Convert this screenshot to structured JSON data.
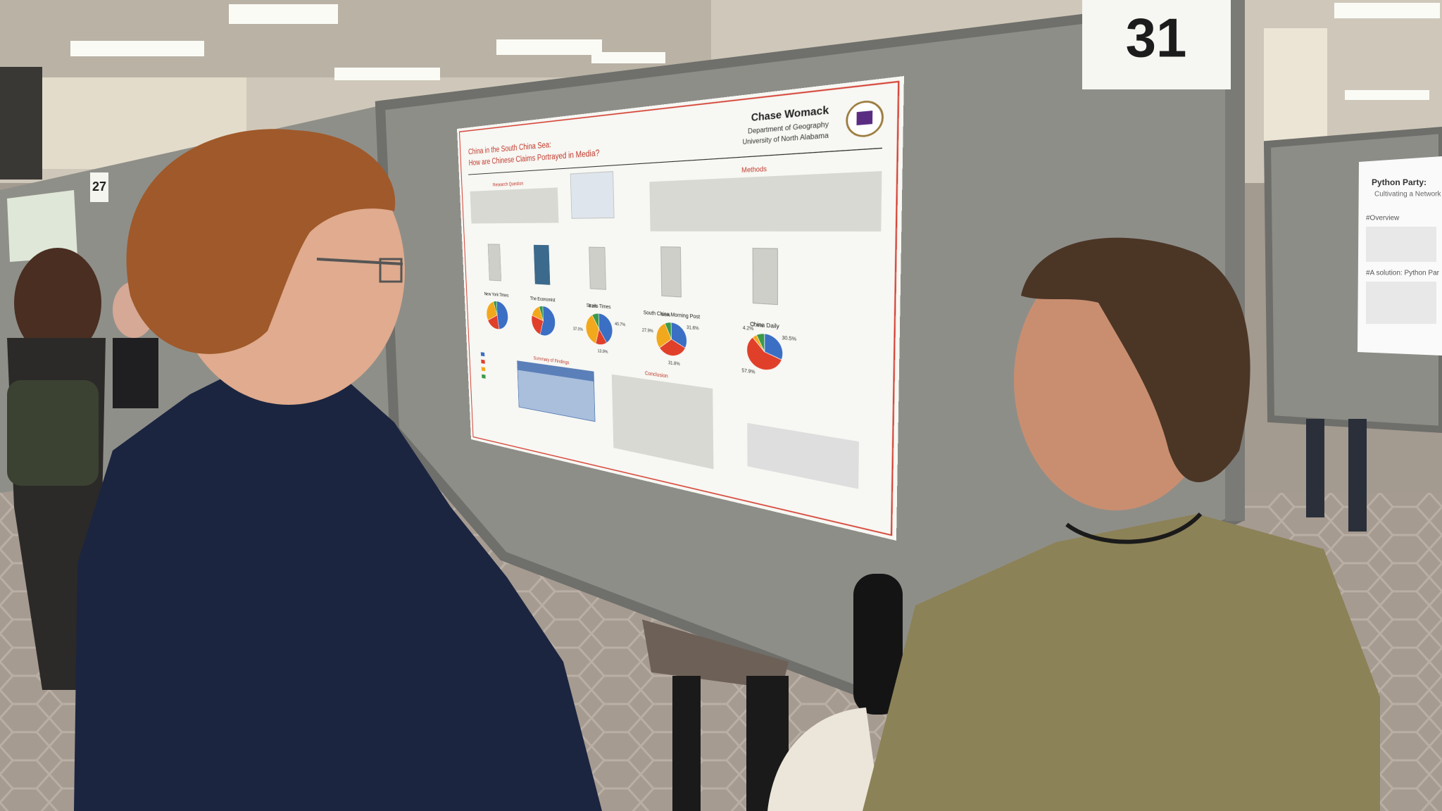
{
  "booth_number": "31",
  "neighbor_booth_number": "27",
  "poster": {
    "title_line1": "China in the South China Sea:",
    "title_line2": "How are Chinese Claims Portrayed in Media?",
    "author": "Chase Womack",
    "department": "Department of Geography",
    "university": "University of North Alabama",
    "sections": [
      "Research Question",
      "Methods",
      "Summary of Findings",
      "Conclusion"
    ],
    "pie_colors": [
      "#3b6fc4",
      "#e0402a",
      "#f2a81d",
      "#3a9a4a"
    ],
    "newspapers": [
      {
        "name": "New York Times",
        "values": [
          48,
          20,
          27,
          5
        ]
      },
      {
        "name": "The Economist",
        "values": [
          55,
          25,
          15,
          5
        ]
      },
      {
        "name": "Straits Times",
        "values": [
          40.7,
          13.9,
          37.0,
          8.3
        ],
        "value_labels": [
          "40.7%",
          "13.9%",
          "37.0%",
          "8.3%"
        ]
      },
      {
        "name": "South China Morning Post",
        "values": [
          31.6,
          31.8,
          27.9,
          6.6
        ],
        "value_labels": [
          "31.6%",
          "31.8%",
          "27.9%",
          "6.6%"
        ]
      },
      {
        "name": "China Daily",
        "values": [
          30.5,
          57.9,
          4.2,
          7.4
        ],
        "value_labels": [
          "30.5%",
          "57.9%",
          "4.2%",
          "7.4%"
        ]
      }
    ]
  },
  "side_poster": {
    "title": "Python Party:",
    "subtitle": "Cultivating a Network",
    "heading1": "#Overview",
    "heading2": "#A solution: Python Par"
  }
}
